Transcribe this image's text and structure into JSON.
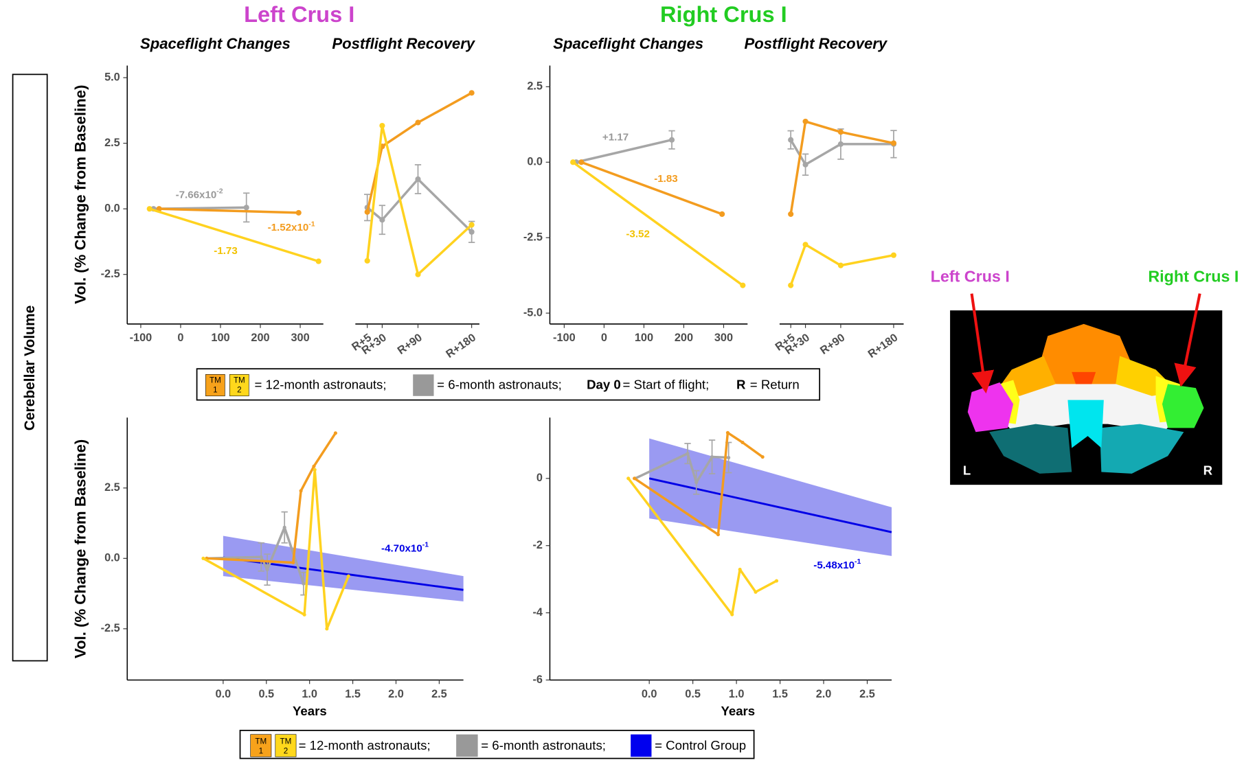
{
  "headers": {
    "left": "Left Crus I",
    "right": "Right Crus I"
  },
  "row_label": "Cerebellar Volume",
  "legend_top": {
    "swatches": [
      {
        "label": "TM",
        "sub": "1",
        "color": "#f7a21b"
      },
      {
        "label": "TM",
        "sub": "2",
        "color": "#ffd81c"
      }
    ],
    "twelve": "= 12-month astronauts;",
    "gray_color": "#999999",
    "six": "= 6-month astronauts;",
    "day0": "Day 0",
    "start": "= Start of flight;",
    "r": "R",
    "ret": "= Return"
  },
  "legend_bottom": {
    "swatches": [
      {
        "label": "TM",
        "sub": "1",
        "color": "#f7a21b"
      },
      {
        "label": "TM",
        "sub": "2",
        "color": "#ffd81c"
      }
    ],
    "twelve": "= 12-month astronauts;",
    "gray_color": "#999999",
    "six": "= 6-month astronauts;",
    "blue_color": "#0000ee",
    "control": "= Control Group"
  },
  "brain": {
    "left_label": "Left Crus I",
    "right_label": "Right Crus I",
    "l": "L",
    "r": "R"
  },
  "chart_data": [
    {
      "type": "line",
      "subtitle": "Spaceflight Changes",
      "ylabel": "Vol. (% Change from Baseline)",
      "xlim": [
        -134,
        358
      ],
      "ylim": [
        -4.39,
        5.46
      ],
      "xticks": [
        -100,
        0,
        100,
        200,
        300
      ],
      "yticks": [
        -2.5,
        {
          "value": 0,
          "label": "0.0"
        },
        2.5,
        {
          "value": 5,
          "label": "5.0"
        }
      ],
      "series": [
        {
          "color": "#a6a6a6",
          "x": [
            -68,
            165
          ],
          "values": [
            0,
            0.05
          ],
          "errors": [
            null,
            0.55
          ]
        },
        {
          "color": "#f39c1f",
          "x": [
            -54,
            296
          ],
          "values": [
            0,
            -0.15
          ]
        },
        {
          "color": "#ffd21f",
          "x": [
            -78,
            346
          ],
          "values": [
            0,
            -2.0
          ]
        }
      ],
      "annotations": [
        {
          "text": "-7.66x10",
          "exponent": "-2",
          "color": "#999999"
        },
        {
          "text": "-1.52x10",
          "exponent": "-1",
          "color": "#f39c1f"
        },
        {
          "text": "-1.73",
          "color": "#f2c200"
        }
      ]
    },
    {
      "type": "line",
      "subtitle": "Postflight Recovery",
      "xlim": [
        -15,
        193
      ],
      "ylim": [
        -4.39,
        5.46
      ],
      "xticks": [
        {
          "value": 5,
          "label": "R+5"
        },
        {
          "value": 30,
          "label": "R+30"
        },
        {
          "value": 90,
          "label": "R+90"
        },
        {
          "value": 180,
          "label": "R+180"
        }
      ],
      "series": [
        {
          "color": "#a6a6a6",
          "x": [
            5,
            30,
            90,
            180
          ],
          "values": [
            0.05,
            -0.42,
            1.13,
            -0.88
          ],
          "errors": [
            0.5,
            0.55,
            0.55,
            0.4
          ]
        },
        {
          "color": "#f39c1f",
          "x": [
            5,
            30,
            90,
            180
          ],
          "values": [
            -0.12,
            2.38,
            3.29,
            4.42
          ]
        },
        {
          "color": "#ffd21f",
          "x": [
            5,
            30,
            90,
            180
          ],
          "values": [
            -1.98,
            3.17,
            -2.5,
            -0.61
          ]
        }
      ]
    },
    {
      "type": "line",
      "subtitle": "Spaceflight Changes",
      "xlim": [
        -136,
        360
      ],
      "ylim": [
        -5.36,
        3.2
      ],
      "xticks": [
        -100,
        0,
        100,
        200,
        300
      ],
      "yticks": [
        {
          "value": -5,
          "label": "-5.0"
        },
        -2.5,
        {
          "value": 0,
          "label": "0.0"
        },
        2.5
      ],
      "series": [
        {
          "color": "#a6a6a6",
          "x": [
            -70,
            170
          ],
          "values": [
            0,
            0.74
          ],
          "errors": [
            null,
            0.3
          ]
        },
        {
          "color": "#f39c1f",
          "x": [
            -57,
            296
          ],
          "values": [
            0,
            -1.72
          ]
        },
        {
          "color": "#ffd21f",
          "x": [
            -78,
            348
          ],
          "values": [
            0,
            -4.08
          ]
        }
      ],
      "annotations": [
        {
          "text": "+1.17",
          "color": "#999999"
        },
        {
          "text": "-1.83",
          "color": "#f39c1f"
        },
        {
          "text": "-3.52",
          "color": "#f2c200"
        }
      ]
    },
    {
      "type": "line",
      "subtitle": "Postflight Recovery",
      "xlim": [
        -14,
        197
      ],
      "ylim": [
        -5.36,
        3.2
      ],
      "xticks": [
        {
          "value": 5,
          "label": "R+5"
        },
        {
          "value": 30,
          "label": "R+30"
        },
        {
          "value": 90,
          "label": "R+90"
        },
        {
          "value": 180,
          "label": "R+180"
        }
      ],
      "series": [
        {
          "color": "#a6a6a6",
          "x": [
            5,
            30,
            90,
            180
          ],
          "values": [
            0.74,
            -0.08,
            0.6,
            0.6
          ],
          "errors": [
            0.3,
            0.35,
            0.5,
            0.45
          ]
        },
        {
          "color": "#f39c1f",
          "x": [
            5,
            30,
            90,
            180
          ],
          "values": [
            -1.72,
            1.35,
            1.0,
            0.63
          ]
        },
        {
          "color": "#ffd21f",
          "x": [
            5,
            30,
            90,
            180
          ],
          "values": [
            -4.08,
            -2.73,
            -3.42,
            -3.08
          ]
        }
      ]
    },
    {
      "type": "line",
      "xlabel": "Years",
      "ylabel": "Vol. (% Change from Baseline)",
      "xlim": [
        -1.11,
        2.78
      ],
      "ylim": [
        -4.32,
        5.0
      ],
      "xticks": [
        {
          "value": 0,
          "label": "0.0"
        },
        0.5,
        {
          "value": 1,
          "label": "1.0"
        },
        1.5,
        {
          "value": 2,
          "label": "2.0"
        },
        2.5
      ],
      "yticks": [
        -2.5,
        {
          "value": 0,
          "label": "0.0"
        },
        2.5
      ],
      "series": [
        {
          "color": "#0000e6",
          "band_color": "#9a9af2",
          "x": [
            0,
            2.78
          ],
          "values": [
            0.03,
            -1.12
          ],
          "band_lower": [
            -0.63,
            -1.53
          ],
          "band_upper": [
            0.8,
            -0.63
          ]
        },
        {
          "color": "#a6a6a6",
          "x": [
            -0.19,
            0.44,
            0.51,
            0.71,
            0.93
          ],
          "values": [
            0,
            0.05,
            -0.4,
            1.1,
            -0.9
          ],
          "errors": [
            null,
            0.5,
            0.55,
            0.55,
            0.4
          ]
        },
        {
          "color": "#f39c1f",
          "x": [
            -0.19,
            0.81,
            0.9,
            1.05,
            1.3
          ],
          "values": [
            0,
            -0.15,
            2.4,
            3.27,
            4.45
          ]
        },
        {
          "color": "#ffd21f",
          "x": [
            -0.23,
            0.94,
            1.06,
            1.2,
            1.45
          ],
          "values": [
            0,
            -2.0,
            3.15,
            -2.5,
            -0.63
          ]
        }
      ],
      "annotations": [
        {
          "text": "-4.70x10",
          "exponent": "-1",
          "color": "#0000e6"
        }
      ]
    },
    {
      "type": "line",
      "xlabel": "Years",
      "xlim": [
        -1.14,
        2.78
      ],
      "ylim": [
        -6,
        1.81
      ],
      "xticks": [
        {
          "value": 0,
          "label": "0.0"
        },
        0.5,
        {
          "value": 1,
          "label": "1.0"
        },
        1.5,
        {
          "value": 2,
          "label": "2.0"
        },
        2.5
      ],
      "yticks": [
        -6,
        -4,
        -2,
        0
      ],
      "series": [
        {
          "color": "#0000e6",
          "band_color": "#9a9af2",
          "x": [
            0,
            2.78
          ],
          "values": [
            0,
            -1.6
          ],
          "band_lower": [
            -1.19,
            -2.31
          ],
          "band_upper": [
            1.19,
            -0.86
          ]
        },
        {
          "color": "#a6a6a6",
          "x": [
            -0.16,
            0.44,
            0.54,
            0.72,
            0.91
          ],
          "values": [
            0,
            0.74,
            -0.12,
            0.64,
            0.62
          ],
          "errors": [
            null,
            0.3,
            0.35,
            0.5,
            0.45
          ]
        },
        {
          "color": "#f39c1f",
          "x": [
            -0.17,
            0.79,
            0.9,
            1.07,
            1.3
          ],
          "values": [
            0,
            -1.67,
            1.36,
            1.07,
            0.64
          ]
        },
        {
          "color": "#ffd21f",
          "x": [
            -0.24,
            0.95,
            1.04,
            1.22,
            1.46
          ],
          "values": [
            0,
            -4.05,
            -2.71,
            -3.38,
            -3.05
          ]
        }
      ],
      "annotations": [
        {
          "text": "-5.48x10",
          "exponent": "-1",
          "color": "#0000e6"
        }
      ]
    }
  ]
}
